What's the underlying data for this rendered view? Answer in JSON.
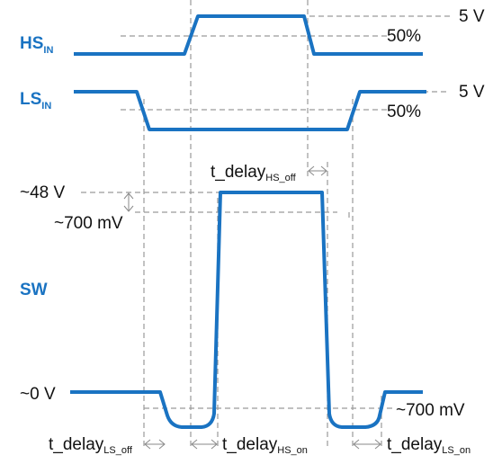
{
  "signals": {
    "hs_in": {
      "main": "HS",
      "sub": "IN"
    },
    "ls_in": {
      "main": "LS",
      "sub": "IN"
    },
    "sw": {
      "main": "SW"
    }
  },
  "levels": {
    "hs_high": "5 V",
    "hs_mid": "50%",
    "ls_high": "5 V",
    "ls_mid": "50%",
    "sw_high": "~48 V",
    "sw_drop": "~700 mV",
    "sw_low": "~0 V",
    "sw_neg": "~700 mV"
  },
  "delays": {
    "hs_off": {
      "main": "t_delay",
      "sub": "HS_off"
    },
    "ls_off": {
      "main": "t_delay",
      "sub": "LS_off"
    },
    "hs_on": {
      "main": "t_delay",
      "sub": "HS_on"
    },
    "ls_on": {
      "main": "t_delay",
      "sub": "LS_on"
    }
  },
  "colors": {
    "signal": "#1a73c2",
    "guide": "#9a9a9a",
    "text": "#111111"
  }
}
